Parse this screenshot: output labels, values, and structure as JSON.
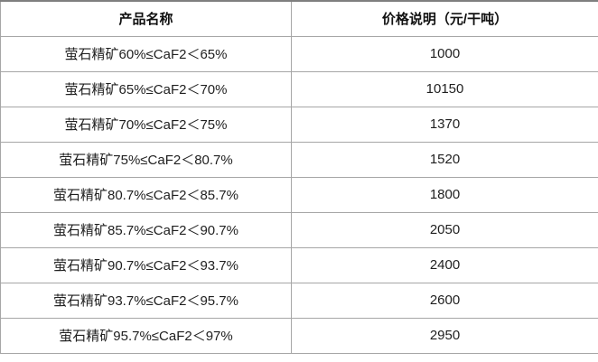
{
  "table": {
    "columns": [
      {
        "label": "产品名称"
      },
      {
        "label": "价格说明（元/干吨）"
      }
    ],
    "rows": [
      {
        "product": "萤石精矿60%≤CaF2＜65%",
        "price": "1000"
      },
      {
        "product": "萤石精矿65%≤CaF2＜70%",
        "price": "10150"
      },
      {
        "product": "萤石精矿70%≤CaF2＜75%",
        "price": "1370"
      },
      {
        "product": "萤石精矿75%≤CaF2＜80.7%",
        "price": "1520"
      },
      {
        "product": "萤石精矿80.7%≤CaF2＜85.7%",
        "price": "1800"
      },
      {
        "product": "萤石精矿85.7%≤CaF2＜90.7%",
        "price": "2050"
      },
      {
        "product": "萤石精矿90.7%≤CaF2＜93.7%",
        "price": "2400"
      },
      {
        "product": "萤石精矿93.7%≤CaF2＜95.7%",
        "price": "2600"
      },
      {
        "product": "萤石精矿95.7%≤CaF2＜97%",
        "price": "2950"
      }
    ]
  },
  "chart_data": {
    "type": "table",
    "title": "",
    "columns": [
      "产品名称",
      "价格说明（元/干吨）"
    ],
    "categories": [
      "萤石精矿60%≤CaF2＜65%",
      "萤石精矿65%≤CaF2＜70%",
      "萤石精矿70%≤CaF2＜75%",
      "萤石精矿75%≤CaF2＜80.7%",
      "萤石精矿80.7%≤CaF2＜85.7%",
      "萤石精矿85.7%≤CaF2＜90.7%",
      "萤石精矿90.7%≤CaF2＜93.7%",
      "萤石精矿93.7%≤CaF2＜95.7%",
      "萤石精矿95.7%≤CaF2＜97%"
    ],
    "values": [
      1000,
      10150,
      1370,
      1520,
      1800,
      2050,
      2400,
      2600,
      2950
    ]
  },
  "colors": {
    "border": "#a6a6a6",
    "border_top": "#7f7f7f",
    "text": "#1f1f1f",
    "background": "#ffffff"
  }
}
